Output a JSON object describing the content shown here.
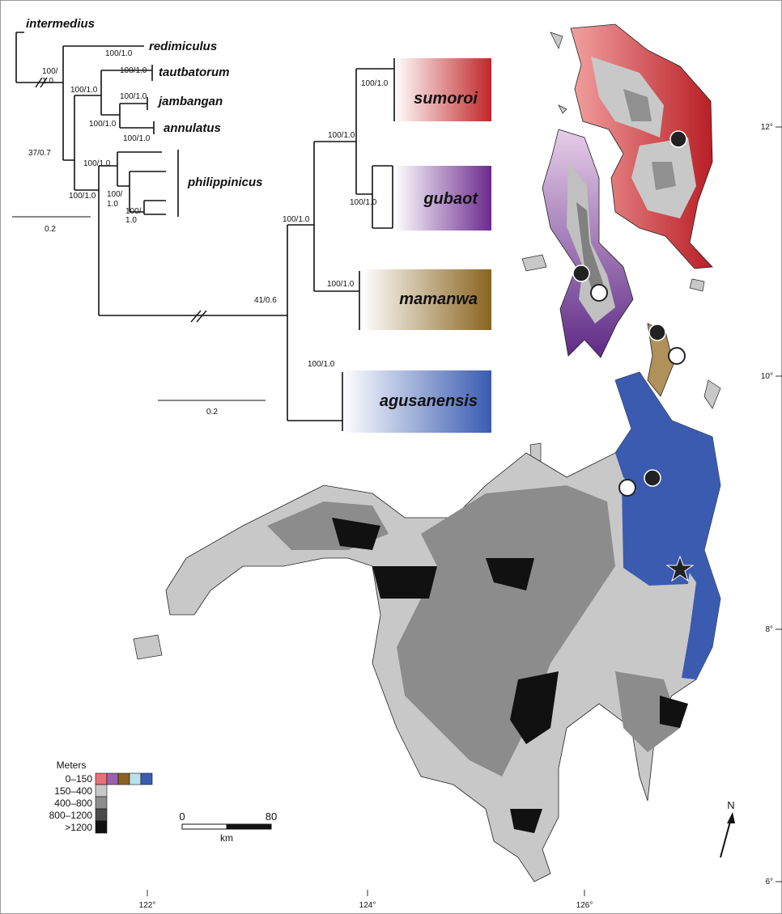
{
  "tree_outgroup": {
    "taxa": [
      "intermedius",
      "redimiculus",
      "tautbatorum",
      "jambangan",
      "annulatus",
      "philippinicus"
    ],
    "supports": [
      "100/1.0",
      [
        "100/",
        "1.0"
      ],
      "100/1.0",
      "100/1.0",
      "100/1.0",
      "100/1.0",
      "100/1.0",
      "37/0.7",
      "100/1.0",
      "100/1.0",
      [
        "100/",
        "1.0"
      ],
      [
        "100/",
        "1.0"
      ]
    ],
    "scale": "0.2"
  },
  "tree_ingroup": {
    "taxa": [
      "sumoroi",
      "gubaot",
      "mamanwa",
      "agusanensis"
    ],
    "supports": [
      "100/1.0",
      "100/1.0",
      "100/1.0",
      "100/1.0",
      "100/1.0",
      "41/0.6",
      "100/1.0"
    ],
    "scale": "0.2"
  },
  "map": {
    "latitudes": [
      "12°",
      "10°",
      "8°",
      "6°"
    ],
    "longitudes": [
      "122°",
      "124°",
      "126°"
    ],
    "north": "N",
    "scale_bar": {
      "ticks": [
        "0",
        "80"
      ],
      "unit": "km"
    }
  },
  "legend": {
    "title": "Meters",
    "classes": [
      "0–150",
      "150–400",
      "400–800",
      "800–1200",
      ">1200"
    ]
  }
}
